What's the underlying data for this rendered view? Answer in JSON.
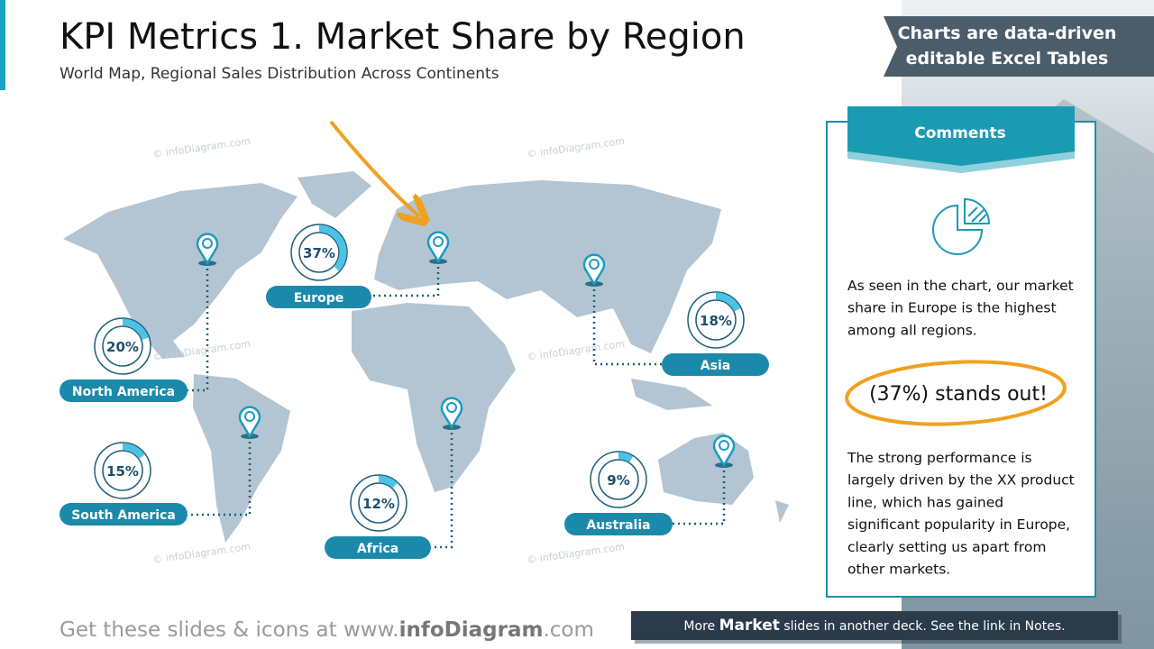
{
  "header": {
    "title": "KPI Metrics 1. Market Share by Region",
    "subtitle": "World Map, Regional Sales Distribution Across Continents"
  },
  "banner": [
    "Charts are data-driven",
    "editable Excel Tables"
  ],
  "regions": [
    {
      "name": "North America",
      "value": 20,
      "value_label": "20%"
    },
    {
      "name": "Europe",
      "value": 37,
      "value_label": "37%"
    },
    {
      "name": "Asia",
      "value": 18,
      "value_label": "18%"
    },
    {
      "name": "South America",
      "value": 15,
      "value_label": "15%"
    },
    {
      "name": "Africa",
      "value": 12,
      "value_label": "12%"
    },
    {
      "name": "Australia",
      "value": 9,
      "value_label": "9%"
    }
  ],
  "watermark": "© infoDiagram.com",
  "comments": {
    "title": "Comments",
    "paragraph_1": [
      "As seen in the chart, our market",
      "share in Europe is the highest",
      "among all regions."
    ],
    "highlight": "(37%) stands out!",
    "paragraph_2": [
      "The strong performance is",
      "largely driven by the XX product",
      "line, which has gained",
      "significant popularity in Europe,",
      "clearly setting us apart from",
      "other markets."
    ]
  },
  "footer": {
    "prefix": "Get these slides & icons at www.",
    "brand": "infoDiagram",
    "suffix": ".com"
  },
  "notice": {
    "prefix": "More",
    "bold": "Market",
    "suffix": "slides in another deck. See the link in Notes."
  }
}
